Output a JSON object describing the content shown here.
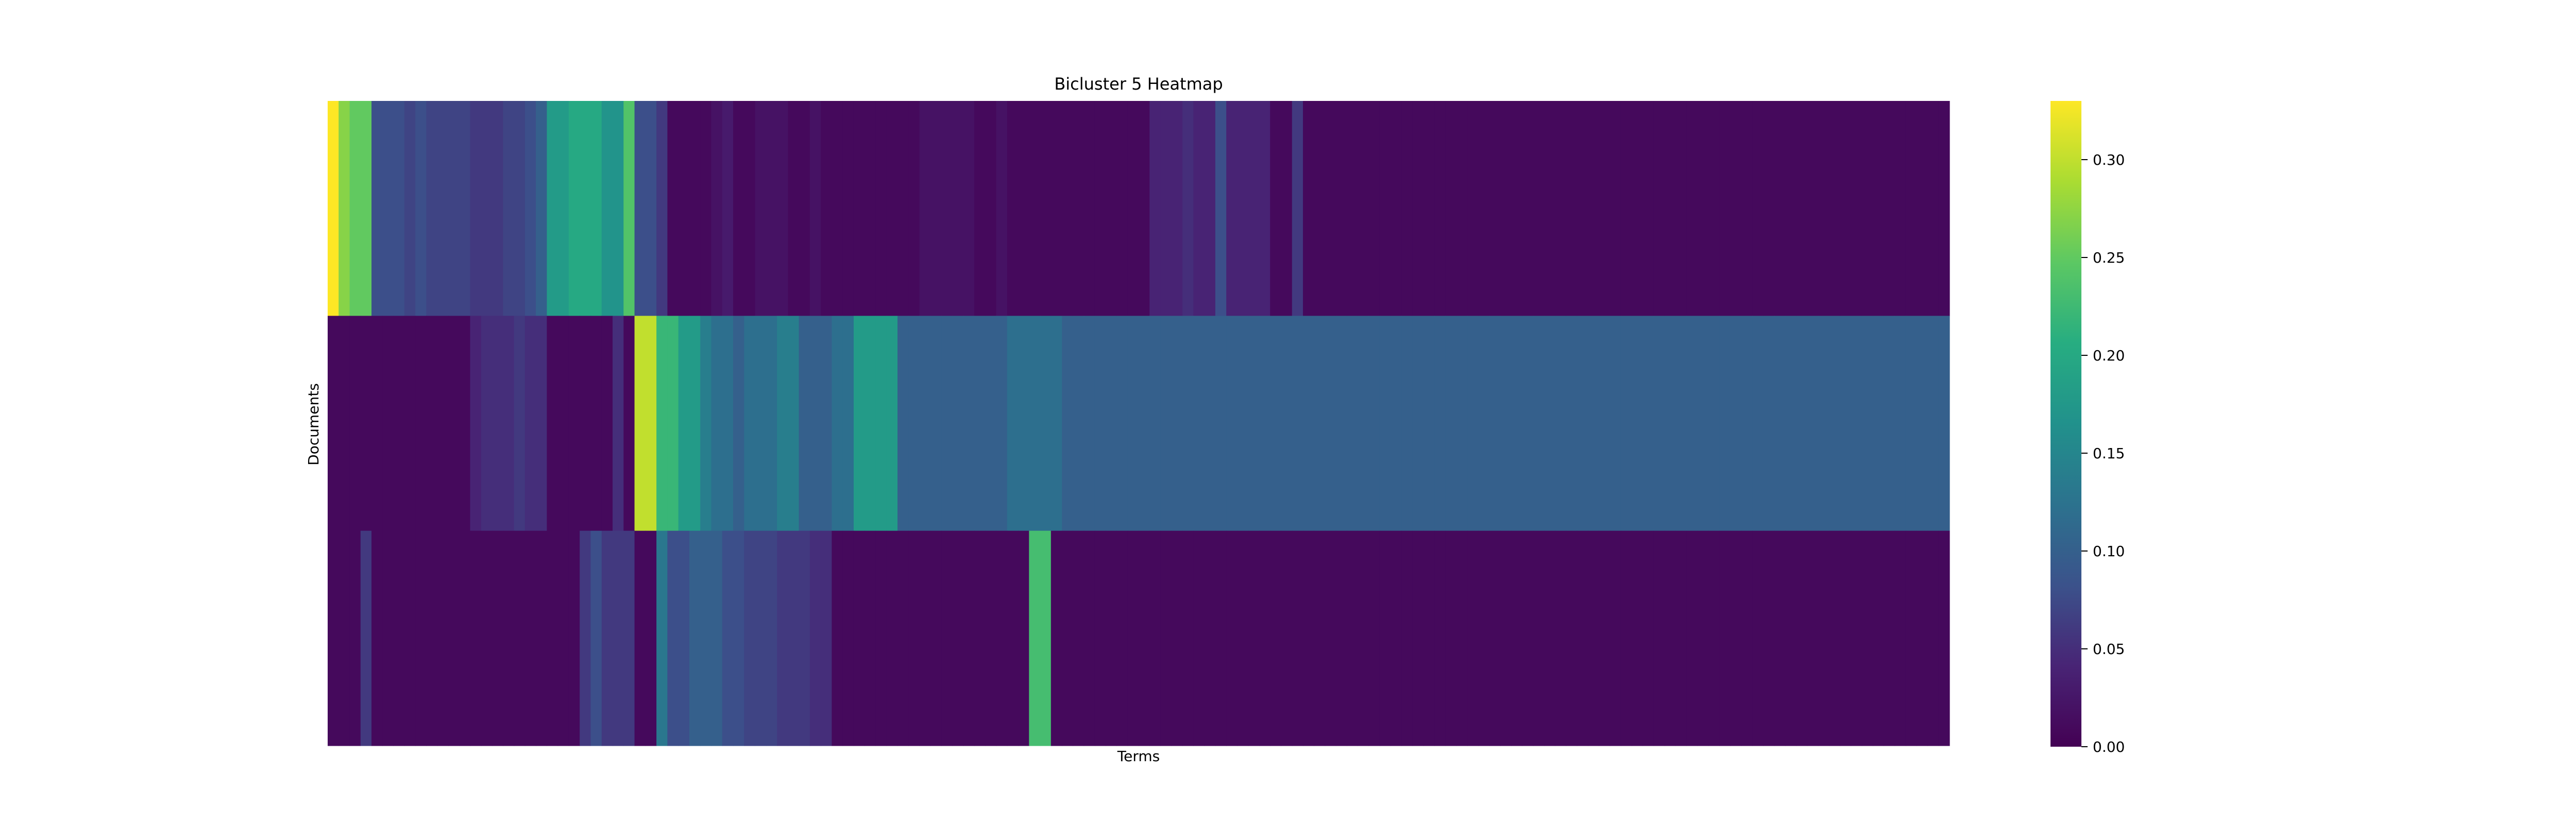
{
  "chart_data": {
    "type": "heatmap",
    "title": "Bicluster 5 Heatmap",
    "xlabel": "Terms",
    "ylabel": "Documents",
    "rows": 3,
    "columns": 148,
    "colormap": "viridis",
    "value_range": [
      0,
      0.33
    ],
    "colorbar": {
      "ticks": [
        0.0,
        0.05,
        0.1,
        0.15,
        0.2,
        0.25,
        0.3
      ],
      "tick_labels": [
        "0.00",
        "0.05",
        "0.10",
        "0.15",
        "0.20",
        "0.25",
        "0.30"
      ]
    },
    "grid": false,
    "values": [
      [
        0.33,
        0.27,
        0.25,
        0.25,
        0.08,
        0.08,
        0.08,
        0.07,
        0.08,
        0.07,
        0.07,
        0.07,
        0.07,
        0.06,
        0.06,
        0.06,
        0.07,
        0.07,
        0.08,
        0.1,
        0.18,
        0.18,
        0.2,
        0.2,
        0.2,
        0.17,
        0.17,
        0.24,
        0.08,
        0.08,
        0.06,
        0.01,
        0.01,
        0.01,
        0.01,
        0.02,
        0.03,
        0.01,
        0.01,
        0.02,
        0.02,
        0.02,
        0.01,
        0.01,
        0.02,
        0.01,
        0.01,
        0.01,
        0.01,
        0.01,
        0.01,
        0.01,
        0.01,
        0.01,
        0.02,
        0.02,
        0.02,
        0.02,
        0.02,
        0.01,
        0.01,
        0.02,
        0.01,
        0.01,
        0.01,
        0.01,
        0.01,
        0.01,
        0.01,
        0.01,
        0.01,
        0.01,
        0.01,
        0.01,
        0.01,
        0.04,
        0.04,
        0.04,
        0.05,
        0.04,
        0.04,
        0.08,
        0.04,
        0.04,
        0.04,
        0.04,
        0.01,
        0.01,
        0.06,
        0.01,
        0.01,
        0.01,
        0.01,
        0.01,
        0.01,
        0.01,
        0.01,
        0.01,
        0.01,
        0.01,
        0.01,
        0.01,
        0.01,
        0.01,
        0.01,
        0.01,
        0.01,
        0.01,
        0.01,
        0.01,
        0.01,
        0.01,
        0.01,
        0.01,
        0.01,
        0.01,
        0.01,
        0.01,
        0.01,
        0.01,
        0.01,
        0.01,
        0.01,
        0.01,
        0.01,
        0.01,
        0.01,
        0.01,
        0.01,
        0.01,
        0.01,
        0.01,
        0.01,
        0.01,
        0.01,
        0.01,
        0.01,
        0.01,
        0.01,
        0.01,
        0.01,
        0.01,
        0.01,
        0.01,
        0.01,
        0.01,
        0.01,
        0.01
      ],
      [
        0.01,
        0.01,
        0.01,
        0.01,
        0.01,
        0.01,
        0.01,
        0.01,
        0.01,
        0.01,
        0.01,
        0.01,
        0.01,
        0.04,
        0.05,
        0.05,
        0.05,
        0.06,
        0.05,
        0.05,
        0.01,
        0.01,
        0.01,
        0.01,
        0.01,
        0.01,
        0.05,
        0.01,
        0.3,
        0.3,
        0.22,
        0.22,
        0.18,
        0.18,
        0.14,
        0.12,
        0.12,
        0.1,
        0.12,
        0.12,
        0.12,
        0.14,
        0.14,
        0.1,
        0.1,
        0.1,
        0.12,
        0.12,
        0.18,
        0.18,
        0.18,
        0.18,
        0.1,
        0.1,
        0.1,
        0.1,
        0.1,
        0.1,
        0.1,
        0.1,
        0.1,
        0.1,
        0.12,
        0.12,
        0.12,
        0.12,
        0.12,
        0.1,
        0.1,
        0.1,
        0.1,
        0.1,
        0.1,
        0.1,
        0.1,
        0.1,
        0.1,
        0.1,
        0.1,
        0.1,
        0.1,
        0.1,
        0.1,
        0.1,
        0.1,
        0.1,
        0.1,
        0.1,
        0.1,
        0.1,
        0.1,
        0.1,
        0.1,
        0.1,
        0.1,
        0.1,
        0.1,
        0.1,
        0.1,
        0.1,
        0.1,
        0.1,
        0.1,
        0.1,
        0.1,
        0.1,
        0.1,
        0.1,
        0.1,
        0.1,
        0.1,
        0.1,
        0.1,
        0.1,
        0.1,
        0.1,
        0.1,
        0.1,
        0.1,
        0.1,
        0.1,
        0.1,
        0.1,
        0.1,
        0.1,
        0.1,
        0.1,
        0.1,
        0.1,
        0.1,
        0.1,
        0.1,
        0.1,
        0.1,
        0.1,
        0.1,
        0.1,
        0.1,
        0.1,
        0.1,
        0.1,
        0.1,
        0.1,
        0.1,
        0.1,
        0.1,
        0.1,
        0.1
      ],
      [
        0.01,
        0.01,
        0.01,
        0.06,
        0.01,
        0.01,
        0.01,
        0.01,
        0.01,
        0.01,
        0.01,
        0.01,
        0.01,
        0.01,
        0.01,
        0.01,
        0.01,
        0.01,
        0.01,
        0.01,
        0.01,
        0.01,
        0.01,
        0.06,
        0.08,
        0.06,
        0.06,
        0.06,
        0.01,
        0.01,
        0.13,
        0.08,
        0.08,
        0.1,
        0.1,
        0.1,
        0.08,
        0.08,
        0.07,
        0.07,
        0.07,
        0.06,
        0.06,
        0.06,
        0.05,
        0.05,
        0.01,
        0.01,
        0.01,
        0.01,
        0.01,
        0.01,
        0.01,
        0.01,
        0.01,
        0.01,
        0.01,
        0.01,
        0.01,
        0.01,
        0.01,
        0.01,
        0.01,
        0.01,
        0.23,
        0.23,
        0.01,
        0.01,
        0.01,
        0.01,
        0.01,
        0.01,
        0.01,
        0.01,
        0.01,
        0.01,
        0.01,
        0.01,
        0.01,
        0.01,
        0.01,
        0.01,
        0.01,
        0.01,
        0.01,
        0.01,
        0.01,
        0.01,
        0.01,
        0.01,
        0.01,
        0.01,
        0.01,
        0.01,
        0.01,
        0.01,
        0.01,
        0.01,
        0.01,
        0.01,
        0.01,
        0.01,
        0.01,
        0.01,
        0.01,
        0.01,
        0.01,
        0.01,
        0.01,
        0.01,
        0.01,
        0.01,
        0.01,
        0.01,
        0.01,
        0.01,
        0.01,
        0.01,
        0.01,
        0.01,
        0.01,
        0.01,
        0.01,
        0.01,
        0.01,
        0.01,
        0.01,
        0.01,
        0.01,
        0.01,
        0.01,
        0.01,
        0.01,
        0.01,
        0.01,
        0.01,
        0.01,
        0.01,
        0.01,
        0.01,
        0.01,
        0.01,
        0.01,
        0.01,
        0.01,
        0.01,
        0.01,
        0.01
      ]
    ]
  }
}
